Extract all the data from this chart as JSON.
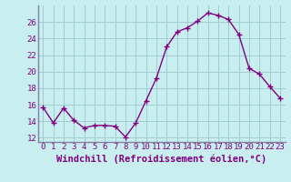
{
  "hours": [
    0,
    1,
    2,
    3,
    4,
    5,
    6,
    7,
    8,
    9,
    10,
    11,
    12,
    13,
    14,
    15,
    16,
    17,
    18,
    19,
    20,
    21,
    22,
    23
  ],
  "values": [
    15.7,
    13.8,
    15.6,
    14.1,
    13.2,
    13.5,
    13.5,
    13.4,
    12.1,
    13.8,
    16.5,
    19.2,
    23.0,
    24.8,
    25.3,
    26.1,
    27.1,
    26.8,
    26.3,
    24.5,
    20.4,
    19.7,
    18.2,
    16.8
  ],
  "line_color": "#800080",
  "marker": "+",
  "marker_size": 4,
  "marker_lw": 1.0,
  "bg_color": "#c8eef0",
  "grid_color": "#a0ccd0",
  "spine_color": "#8080a0",
  "xlabel": "Windchill (Refroidissement éolien,°C)",
  "ylim": [
    11.5,
    28.0
  ],
  "xlim": [
    -0.5,
    23.5
  ],
  "yticks": [
    12,
    14,
    16,
    18,
    20,
    22,
    24,
    26
  ],
  "xticks": [
    0,
    1,
    2,
    3,
    4,
    5,
    6,
    7,
    8,
    9,
    10,
    11,
    12,
    13,
    14,
    15,
    16,
    17,
    18,
    19,
    20,
    21,
    22,
    23
  ],
  "tick_fontsize": 6.5,
  "label_fontsize": 7.5,
  "linewidth": 1.0
}
